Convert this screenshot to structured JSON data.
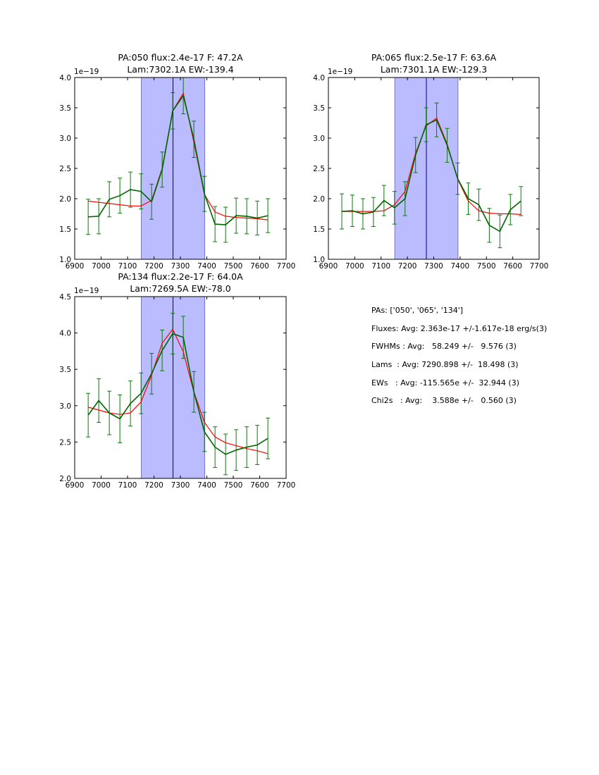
{
  "colors": {
    "data_line": "#006400",
    "model_line": "#ff0000",
    "error_bar": "#0b7a0b",
    "window_fill": "#bbbbff",
    "window_edge": "#7777cc",
    "center_line": "#000080"
  },
  "chart_data": [
    {
      "type": "line",
      "title": [
        "PA:050 flux:2.4e-17 F: 47.2A",
        "Lam:7302.1A EW:-139.4"
      ],
      "y_exponent_label": "1e−19",
      "xlim": [
        6900,
        7700
      ],
      "ylim": [
        1.0,
        4.0
      ],
      "xticks": [
        6900,
        7000,
        7100,
        7200,
        7300,
        7400,
        7500,
        7600,
        7700
      ],
      "yticks": [
        1.0,
        1.5,
        2.0,
        2.5,
        3.0,
        3.5,
        4.0
      ],
      "ytick_labels": [
        "1.0",
        "1.5",
        "2.0",
        "2.5",
        "3.0",
        "3.5",
        "4.0"
      ],
      "window": [
        7152,
        7392
      ],
      "center": 7272,
      "x": [
        6951,
        6991,
        7031,
        7071,
        7111,
        7151,
        7191,
        7231,
        7271,
        7311,
        7351,
        7391,
        7431,
        7471,
        7511,
        7551,
        7591,
        7631
      ],
      "y": [
        1.7,
        1.71,
        1.99,
        2.05,
        2.15,
        2.12,
        1.95,
        2.48,
        3.45,
        3.7,
        2.98,
        2.08,
        1.58,
        1.57,
        1.72,
        1.71,
        1.68,
        1.72
      ],
      "yerr": [
        0.29,
        0.29,
        0.29,
        0.29,
        0.29,
        0.29,
        0.29,
        0.29,
        0.3,
        0.3,
        0.3,
        0.29,
        0.29,
        0.29,
        0.29,
        0.29,
        0.28,
        0.28
      ],
      "model": [
        1.96,
        1.94,
        1.92,
        1.9,
        1.88,
        1.88,
        1.97,
        2.5,
        3.45,
        3.74,
        2.93,
        2.07,
        1.78,
        1.71,
        1.69,
        1.68,
        1.67,
        1.65
      ]
    },
    {
      "type": "line",
      "title": [
        "PA:065 flux:2.5e-17 F: 63.6A",
        "Lam:7301.1A EW:-129.3"
      ],
      "y_exponent_label": "1e−19",
      "xlim": [
        6900,
        7700
      ],
      "ylim": [
        1.0,
        4.0
      ],
      "xticks": [
        6900,
        7000,
        7100,
        7200,
        7300,
        7400,
        7500,
        7600,
        7700
      ],
      "yticks": [
        1.0,
        1.5,
        2.0,
        2.5,
        3.0,
        3.5,
        4.0
      ],
      "ytick_labels": [
        "1.0",
        "1.5",
        "2.0",
        "2.5",
        "3.0",
        "3.5",
        "4.0"
      ],
      "window": [
        7152,
        7392
      ],
      "center": 7272,
      "x": [
        6951,
        6991,
        7031,
        7071,
        7111,
        7151,
        7191,
        7231,
        7271,
        7311,
        7351,
        7391,
        7431,
        7471,
        7511,
        7551,
        7591,
        7631
      ],
      "y": [
        1.79,
        1.8,
        1.75,
        1.78,
        1.97,
        1.85,
        2.0,
        2.72,
        3.22,
        3.3,
        2.88,
        2.33,
        2.0,
        1.9,
        1.56,
        1.46,
        1.82,
        1.96
      ],
      "yerr": [
        0.29,
        0.26,
        0.25,
        0.24,
        0.25,
        0.27,
        0.28,
        0.29,
        0.28,
        0.28,
        0.28,
        0.26,
        0.26,
        0.26,
        0.28,
        0.27,
        0.25,
        0.24
      ],
      "model": [
        1.79,
        1.79,
        1.79,
        1.79,
        1.8,
        1.9,
        2.12,
        2.75,
        3.2,
        3.33,
        2.9,
        2.32,
        1.96,
        1.8,
        1.76,
        1.75,
        1.75,
        1.74
      ]
    },
    {
      "type": "line",
      "title": [
        "PA:134 flux:2.2e-17 F: 64.0A",
        "Lam:7269.5A EW:-78.0"
      ],
      "y_exponent_label": "1e−19",
      "xlim": [
        6900,
        7700
      ],
      "ylim": [
        2.0,
        4.5
      ],
      "xticks": [
        6900,
        7000,
        7100,
        7200,
        7300,
        7400,
        7500,
        7600,
        7700
      ],
      "yticks": [
        2.0,
        2.5,
        3.0,
        3.5,
        4.0,
        4.5
      ],
      "ytick_labels": [
        "2.0",
        "2.5",
        "3.0",
        "3.5",
        "4.0",
        "4.5"
      ],
      "window": [
        7152,
        7392
      ],
      "center": 7272,
      "x": [
        6951,
        6991,
        7031,
        7071,
        7111,
        7151,
        7191,
        7231,
        7271,
        7311,
        7351,
        7391,
        7431,
        7471,
        7511,
        7551,
        7591,
        7631
      ],
      "y": [
        2.87,
        3.07,
        2.9,
        2.82,
        3.03,
        3.17,
        3.44,
        3.76,
        3.99,
        3.94,
        3.19,
        2.64,
        2.43,
        2.33,
        2.39,
        2.43,
        2.46,
        2.55
      ],
      "yerr": [
        0.3,
        0.3,
        0.3,
        0.33,
        0.31,
        0.28,
        0.28,
        0.28,
        0.28,
        0.29,
        0.28,
        0.27,
        0.28,
        0.28,
        0.28,
        0.28,
        0.27,
        0.28
      ],
      "model": [
        2.98,
        2.94,
        2.9,
        2.88,
        2.9,
        3.05,
        3.42,
        3.86,
        4.05,
        3.74,
        3.19,
        2.77,
        2.57,
        2.49,
        2.45,
        2.41,
        2.38,
        2.34
      ]
    }
  ],
  "summary": {
    "pas": "PAs: ['050', '065', '134']",
    "fluxes": "Fluxes: Avg: 2.363e-17 +/-1.617e-18 erg/s(3)",
    "fwhms": "FWHMs : Avg:   58.249 +/-   9.576 (3)",
    "lams": "Lams  : Avg: 7290.898 +/-  18.498 (3)",
    "ews": "EWs   : Avg: -115.565e +/-  32.944 (3)",
    "chi2s": "Chi2s   : Avg:    3.588e +/-   0.560 (3)"
  }
}
